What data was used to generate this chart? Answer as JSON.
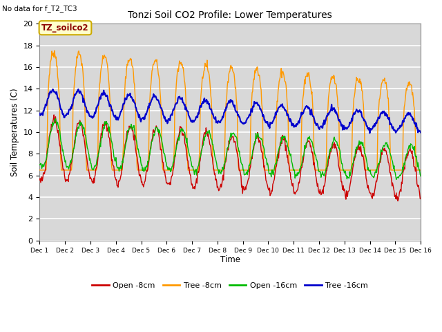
{
  "title": "Tonzi Soil CO2 Profile: Lower Temperatures",
  "subtitle": "No data for f_T2_TC3",
  "ylabel": "Soil Temperatures (C)",
  "xlabel": "Time",
  "ylim": [
    0,
    20
  ],
  "annotation_box": "TZ_soilco2",
  "xtick_labels": [
    "Dec 1",
    "Dec 2",
    "Dec 3",
    "Dec 4",
    "Dec 5",
    "Dec 6",
    "Dec 7",
    "Dec 8",
    "Dec 9",
    "Dec 9",
    "Dec 10",
    "Dec 11",
    "Dec 12",
    "Dec 13",
    "Dec 14",
    "Dec 15",
    "Dec 16"
  ],
  "ytick_values": [
    0,
    2,
    4,
    6,
    8,
    10,
    12,
    14,
    16,
    18,
    20
  ],
  "fig_bg_color": "#ffffff",
  "plot_bg_color": "#d8d8d8",
  "grid_color": "#ffffff",
  "colors": {
    "open_8cm": "#cc0000",
    "tree_8cm": "#ff9900",
    "open_16cm": "#00bb00",
    "tree_16cm": "#0000cc"
  },
  "legend_labels": [
    "Open -8cm",
    "Tree -8cm",
    "Open -16cm",
    "Tree -16cm"
  ]
}
